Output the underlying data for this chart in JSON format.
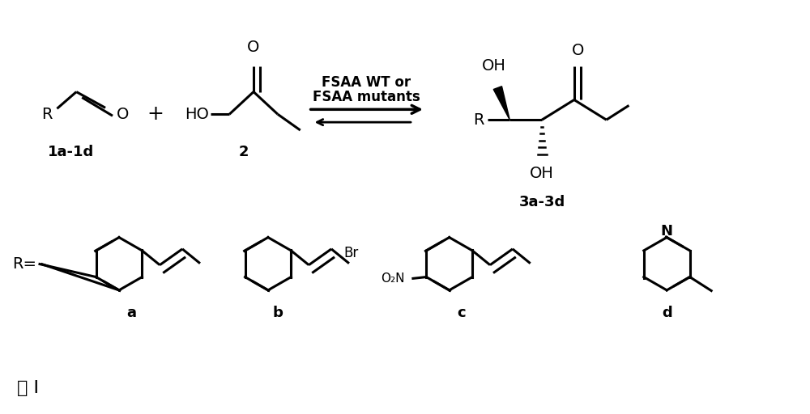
{
  "background_color": "#ffffff",
  "text_color": "#000000",
  "figure_width": 10.0,
  "figure_height": 5.12,
  "dpi": 100,
  "label_1a1d": "1a-1d",
  "label_2": "2",
  "label_3a3d": "3a-3d",
  "label_arrow_text1": "FSAA WT or",
  "label_arrow_text2": "FSAA mutants",
  "label_a": "a",
  "label_b": "b",
  "label_c": "c",
  "label_d": "d",
  "label_R_eq": "R=",
  "label_bottom": "式 I",
  "label_plus": "+",
  "label_O2N": "O₂N",
  "label_Br": "Br",
  "label_N_pyridine": "N",
  "label_OH_top": "OH",
  "label_OH_bottom": "OH",
  "label_O_ketone": "O",
  "label_HO": "HO",
  "label_O_aldehyde": "O",
  "label_R_aldehyde": "R",
  "label_R_product": "R",
  "fs_main": 14,
  "fs_label": 13,
  "fs_bold_label": 14,
  "lw_main": 2.2,
  "lw_bold": 5.0
}
